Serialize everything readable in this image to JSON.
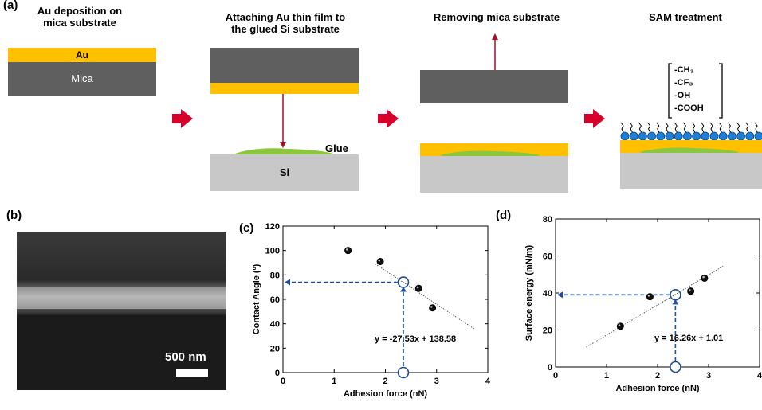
{
  "panel_a": {
    "letter": "(a)",
    "step1": {
      "title_l1": "Au deposition on",
      "title_l2": "mica substrate",
      "au": "Au",
      "mica": "Mica"
    },
    "step2": {
      "title_l1": "Attaching Au thin film to",
      "title_l2": "the glued Si substrate",
      "glue": "Glue",
      "si": "Si"
    },
    "step3": {
      "title": "Removing mica substrate"
    },
    "step4": {
      "title": "SAM treatment",
      "groups": [
        "-CH₃",
        "-CF₃",
        "-OH",
        "-COOH"
      ]
    },
    "colors": {
      "au": "#FFC000",
      "mica": "#5F5F5F",
      "si": "#C8C8C8",
      "glue": "#8CC63F",
      "arrow": "#D7002B",
      "sam_bead": "#1F7FD6"
    }
  },
  "panel_b": {
    "letter": "(b)",
    "scalebar": "500 nm"
  },
  "chart_data": [
    {
      "id": "c",
      "letter": "(c)",
      "type": "scatter",
      "xlabel": "Adhesion force (nN)",
      "ylabel": "Contact Angle (º)",
      "xlim": [
        0,
        4
      ],
      "ylim": [
        0,
        120
      ],
      "xticks": [
        "0",
        "1",
        "2",
        "3",
        "4"
      ],
      "yticks": [
        "0",
        "20",
        "40",
        "60",
        "80",
        "100",
        "120"
      ],
      "points": [
        [
          1.27,
          100
        ],
        [
          1.9,
          91
        ],
        [
          2.65,
          69
        ],
        [
          2.92,
          53
        ]
      ],
      "fit": {
        "slope": -27.53,
        "intercept": 138.58,
        "x_range": [
          1.8,
          3.75
        ],
        "label": "y = -27.53x + 138.58"
      },
      "marker": {
        "x": 2.35,
        "y": 74
      },
      "grid": false
    },
    {
      "id": "d",
      "letter": "(d)",
      "type": "scatter",
      "xlabel": "Adhesion force (nN)",
      "ylabel": "Surface energy (mN/m)",
      "xlim": [
        0,
        4
      ],
      "ylim": [
        0,
        80
      ],
      "xticks": [
        "0",
        "1",
        "2",
        "3",
        "4"
      ],
      "yticks": [
        "0",
        "20",
        "40",
        "60",
        "80"
      ],
      "points": [
        [
          1.27,
          22
        ],
        [
          1.85,
          38
        ],
        [
          2.65,
          41
        ],
        [
          2.92,
          48
        ]
      ],
      "fit": {
        "slope": 16.26,
        "intercept": 1.01,
        "x_range": [
          0.6,
          3.3
        ],
        "label": "y = 16.26x + 1.01"
      },
      "marker": {
        "x": 2.35,
        "y": 39
      },
      "grid": false
    }
  ]
}
